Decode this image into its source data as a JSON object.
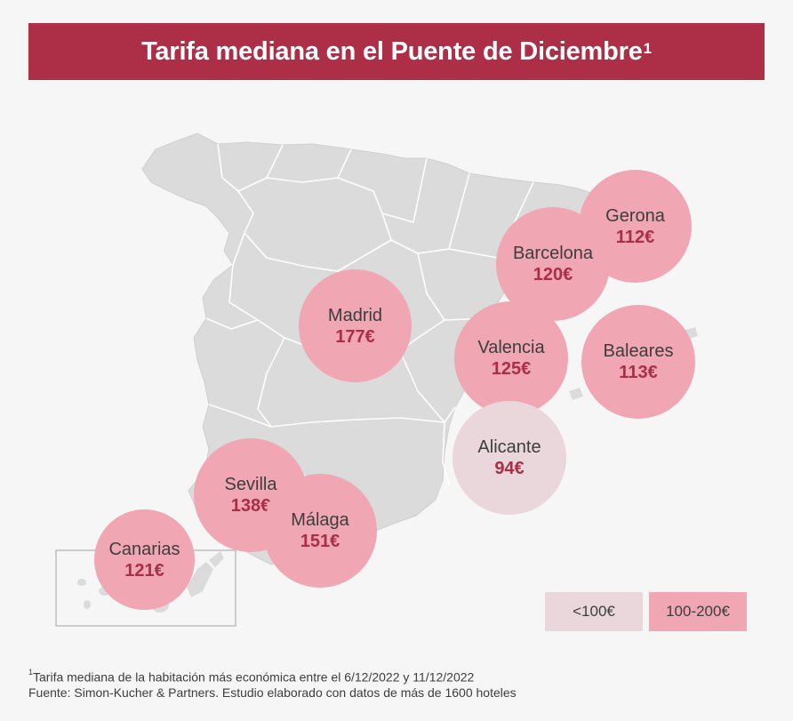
{
  "title": "Tarifa mediana en el Puente de Diciembre",
  "title_footnote_mark": "1",
  "colors": {
    "title_bg": "#ac2f47",
    "map_fill": "#dbdbdb",
    "map_border": "#ffffff",
    "high": "#f0a6b3",
    "low": "#ead7dc",
    "price_text": "#a82f45"
  },
  "cities": [
    {
      "id": "gerona",
      "name": "Gerona",
      "price": "112€",
      "tier": "high"
    },
    {
      "id": "barcelona",
      "name": "Barcelona",
      "price": "120€",
      "tier": "high"
    },
    {
      "id": "madrid",
      "name": "Madrid",
      "price": "177€",
      "tier": "high"
    },
    {
      "id": "valencia",
      "name": "Valencia",
      "price": "125€",
      "tier": "high"
    },
    {
      "id": "baleares",
      "name": "Baleares",
      "price": "113€",
      "tier": "high"
    },
    {
      "id": "alicante",
      "name": "Alicante",
      "price": "94€",
      "tier": "low"
    },
    {
      "id": "sevilla",
      "name": "Sevilla",
      "price": "138€",
      "tier": "high"
    },
    {
      "id": "malaga",
      "name": "Málaga",
      "price": "151€",
      "tier": "high"
    },
    {
      "id": "canarias",
      "name": "Canarias",
      "price": "121€",
      "tier": "high"
    }
  ],
  "legend": {
    "low_label": "<100€",
    "high_label": "100-200€"
  },
  "footer": {
    "note_mark": "1",
    "note": "Tarifa mediana de la habitación más económica entre el 6/12/2022 y 11/12/2022",
    "source": "Fuente: Simon-Kucher & Partners. Estudio elaborado con datos de más de 1600 hoteles"
  }
}
